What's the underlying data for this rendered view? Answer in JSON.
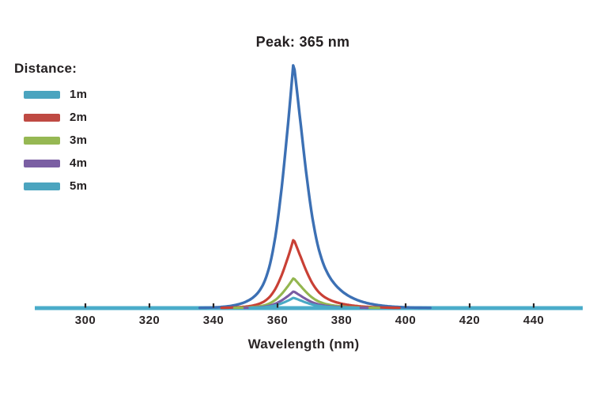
{
  "chart_data": {
    "type": "line",
    "title": "Peak: 365 nm",
    "xlabel": "Wavelength (nm)",
    "x_ticks": [
      300,
      320,
      340,
      360,
      380,
      400,
      420,
      440
    ],
    "x_range_nm": [
      284,
      456
    ],
    "peak_wavelength_nm": 365,
    "y_axis_shown": false,
    "grid": false,
    "legend_position": "top-left",
    "series": [
      {
        "name": "1m",
        "color": "#3c70b4",
        "peak_nm": 365,
        "peak_relative_intensity": 1.0,
        "tail_left_nm": 4.5,
        "tail_right_nm": 6.5,
        "line_width": 3.4
      },
      {
        "name": "2m",
        "color": "#c94035",
        "peak_nm": 365,
        "peak_relative_intensity": 0.28,
        "tail_left_nm": 4.3,
        "tail_right_nm": 6.3,
        "line_width": 3.2
      },
      {
        "name": "3m",
        "color": "#93b64f",
        "peak_nm": 365,
        "peak_relative_intensity": 0.122,
        "tail_left_nm": 4.2,
        "tail_right_nm": 6.0,
        "line_width": 3.1
      },
      {
        "name": "4m",
        "color": "#7a5ca3",
        "peak_nm": 365,
        "peak_relative_intensity": 0.068,
        "tail_left_nm": 4.0,
        "tail_right_nm": 6.0,
        "line_width": 3.1
      },
      {
        "name": "5m",
        "color": "#48a9c5",
        "peak_nm": 365,
        "peak_relative_intensity": 0.042,
        "tail_left_nm": 4.0,
        "tail_right_nm": 6.0,
        "line_width": 3.1
      }
    ]
  },
  "legend": {
    "header": "Distance:",
    "items": [
      {
        "label": "1m",
        "swatch_color": "#4ba4bf"
      },
      {
        "label": "2m",
        "swatch_color": "#bf4a43"
      },
      {
        "label": "3m",
        "swatch_color": "#96b853"
      },
      {
        "label": "4m",
        "swatch_color": "#7b5fa3"
      },
      {
        "label": "5m",
        "swatch_color": "#4ba4bf"
      }
    ]
  },
  "colors": {
    "axis": "#4aacca",
    "tick_mark": "#2a2526",
    "text": "#2b2627",
    "background": "#ffffff"
  }
}
